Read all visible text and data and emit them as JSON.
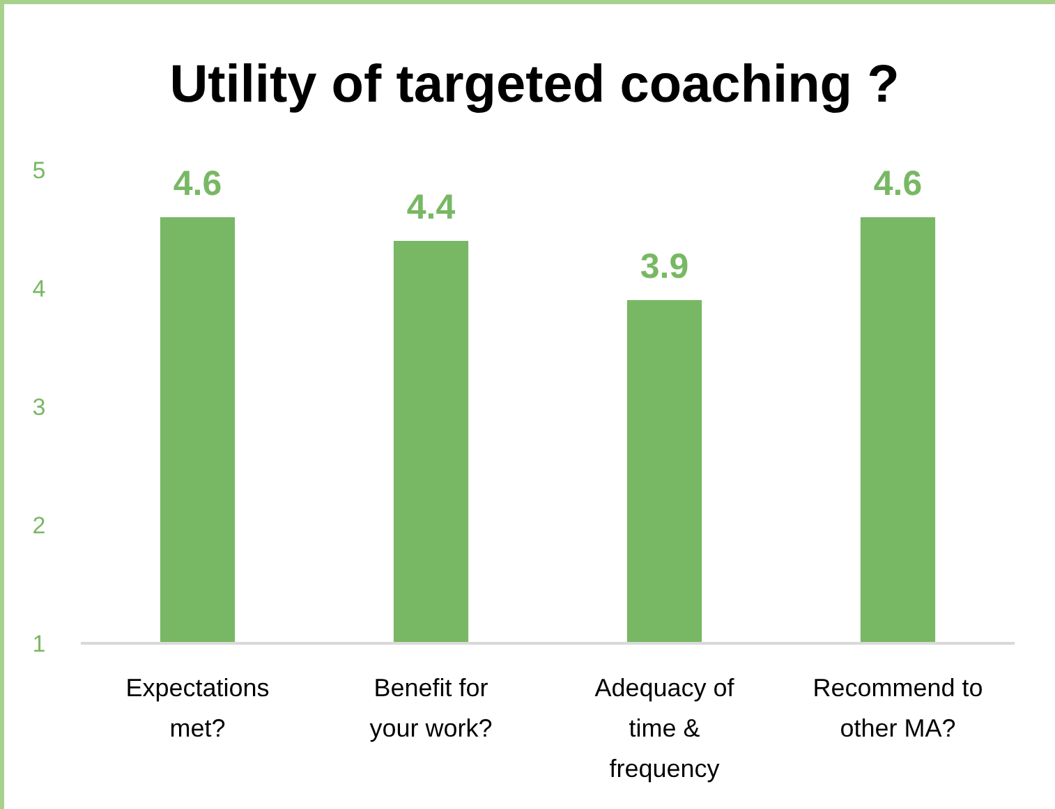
{
  "chart_data": {
    "type": "bar",
    "title": "Utility of targeted coaching ?",
    "categories": [
      "Expectations met?",
      "Benefit for your work?",
      "Adequacy of time & frequency",
      "Recommend to other MA?"
    ],
    "values": [
      4.6,
      4.4,
      3.9,
      4.6
    ],
    "color": "#78b864",
    "ylim": [
      1,
      5
    ],
    "yticks": [
      1,
      2,
      3,
      4,
      5
    ],
    "grid": false,
    "data_labels": true
  }
}
